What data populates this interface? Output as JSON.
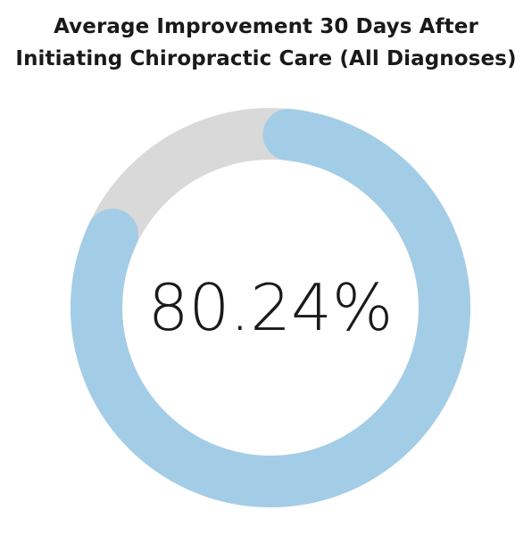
{
  "chart_data": {
    "type": "pie",
    "title_lines": [
      "Average Improvement 30 Days After",
      "Initiating Chiropractic Care (All Diagnoses)"
    ],
    "value_percent": 80.24,
    "center_label": "80.24%",
    "colors": {
      "value": "#a3cde6",
      "remainder": "#d9d9d9",
      "text": "#1a1a1a"
    }
  }
}
